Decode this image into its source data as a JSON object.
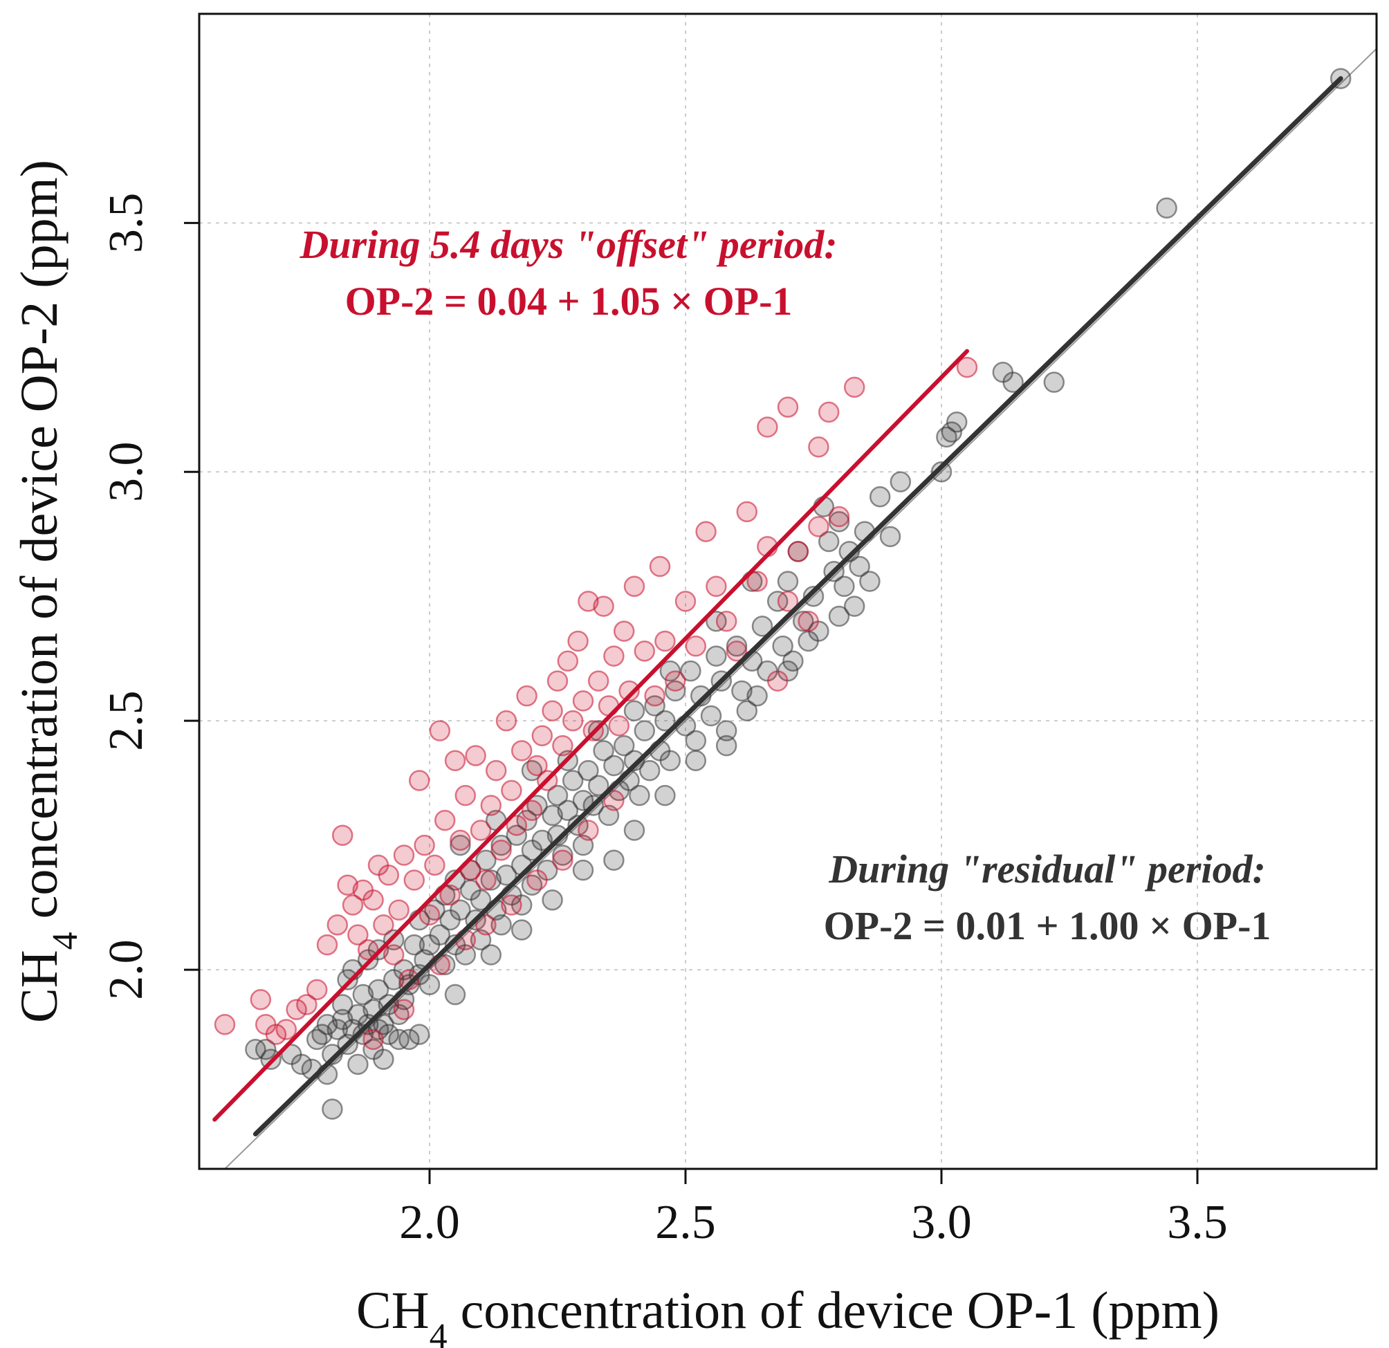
{
  "chart_data": {
    "type": "scatter",
    "xlabel": {
      "pre": "CH",
      "sub": "4",
      "post": " concentration of device OP-1 (ppm)"
    },
    "ylabel": {
      "pre": "CH",
      "sub": "4",
      "post": " concentration of device OP-2 (ppm)"
    },
    "xlim": [
      1.55,
      3.85
    ],
    "ylim": [
      1.6,
      3.92
    ],
    "x_ticks": [
      "2.0",
      "2.5",
      "3.0",
      "3.5"
    ],
    "y_ticks": [
      "2.0",
      "2.5",
      "3.0",
      "3.5"
    ],
    "grid": true,
    "reference_line": {
      "type": "one-to-one",
      "color": "#999999"
    },
    "colors": {
      "offset": "#c8102e",
      "residual": "#333333",
      "grid": "#cccccc"
    },
    "annotations": {
      "offset_title": "During 5.4 days \"offset\" period:",
      "offset_equation": "OP-2 = 0.04 + 1.05 × OP-1",
      "residual_title": "During \"residual\" period:",
      "residual_equation": "OP-2 = 0.01 + 1.00 × OP-1"
    },
    "series": [
      {
        "id": "residual",
        "color": "#333333",
        "fit": {
          "intercept": 0.01,
          "slope": 1.0,
          "x_range": [
            1.66,
            3.78
          ]
        },
        "points": [
          [
            1.66,
            1.84
          ],
          [
            1.68,
            1.84
          ],
          [
            1.69,
            1.82
          ],
          [
            1.73,
            1.83
          ],
          [
            1.75,
            1.81
          ],
          [
            1.77,
            1.8
          ],
          [
            1.78,
            1.86
          ],
          [
            1.79,
            1.87
          ],
          [
            1.8,
            1.89
          ],
          [
            1.8,
            1.79
          ],
          [
            1.81,
            1.83
          ],
          [
            1.81,
            1.72
          ],
          [
            1.82,
            1.88
          ],
          [
            1.83,
            1.9
          ],
          [
            1.83,
            1.93
          ],
          [
            1.84,
            1.85
          ],
          [
            1.84,
            1.98
          ],
          [
            1.85,
            1.88
          ],
          [
            1.85,
            2.0
          ],
          [
            1.86,
            1.91
          ],
          [
            1.86,
            1.81
          ],
          [
            1.87,
            1.87
          ],
          [
            1.87,
            1.95
          ],
          [
            1.88,
            1.89
          ],
          [
            1.88,
            2.02
          ],
          [
            1.89,
            1.84
          ],
          [
            1.89,
            1.92
          ],
          [
            1.9,
            1.88
          ],
          [
            1.9,
            1.96
          ],
          [
            1.9,
            2.04
          ],
          [
            1.91,
            1.89
          ],
          [
            1.91,
            1.82
          ],
          [
            1.92,
            1.93
          ],
          [
            1.92,
            1.87
          ],
          [
            1.93,
            1.98
          ],
          [
            1.93,
            2.06
          ],
          [
            1.94,
            1.91
          ],
          [
            1.94,
            1.86
          ],
          [
            1.95,
            1.94
          ],
          [
            1.95,
            2.0
          ],
          [
            1.96,
            1.97
          ],
          [
            1.96,
            1.86
          ],
          [
            1.97,
            2.05
          ],
          [
            1.98,
            1.99
          ],
          [
            1.98,
            2.1
          ],
          [
            1.99,
            2.02
          ],
          [
            2.0,
            2.05
          ],
          [
            2.0,
            1.97
          ],
          [
            2.01,
            2.12
          ],
          [
            2.02,
            2.07
          ],
          [
            2.03,
            2.01
          ],
          [
            2.03,
            2.15
          ],
          [
            2.04,
            2.1
          ],
          [
            2.05,
            2.05
          ],
          [
            2.05,
            2.18
          ],
          [
            2.06,
            2.12
          ],
          [
            2.07,
            2.03
          ],
          [
            2.08,
            2.16
          ],
          [
            2.08,
            2.2
          ],
          [
            2.09,
            2.1
          ],
          [
            2.1,
            2.14
          ],
          [
            2.1,
            2.06
          ],
          [
            2.11,
            2.22
          ],
          [
            2.12,
            2.18
          ],
          [
            2.13,
            2.12
          ],
          [
            2.14,
            2.25
          ],
          [
            2.14,
            2.09
          ],
          [
            2.15,
            2.19
          ],
          [
            2.16,
            2.15
          ],
          [
            2.17,
            2.27
          ],
          [
            2.18,
            2.21
          ],
          [
            2.18,
            2.13
          ],
          [
            2.19,
            2.3
          ],
          [
            2.2,
            2.24
          ],
          [
            2.2,
            2.17
          ],
          [
            2.21,
            2.33
          ],
          [
            2.22,
            2.26
          ],
          [
            2.23,
            2.2
          ],
          [
            2.24,
            2.31
          ],
          [
            2.25,
            2.27
          ],
          [
            2.25,
            2.35
          ],
          [
            2.26,
            2.23
          ],
          [
            2.27,
            2.32
          ],
          [
            2.28,
            2.38
          ],
          [
            2.29,
            2.29
          ],
          [
            2.3,
            2.34
          ],
          [
            2.3,
            2.25
          ],
          [
            2.31,
            2.4
          ],
          [
            2.32,
            2.33
          ],
          [
            2.33,
            2.37
          ],
          [
            2.34,
            2.44
          ],
          [
            2.35,
            2.31
          ],
          [
            2.36,
            2.41
          ],
          [
            2.37,
            2.36
          ],
          [
            2.38,
            2.45
          ],
          [
            2.39,
            2.38
          ],
          [
            2.4,
            2.42
          ],
          [
            2.41,
            2.35
          ],
          [
            2.42,
            2.48
          ],
          [
            2.43,
            2.4
          ],
          [
            2.44,
            2.53
          ],
          [
            2.45,
            2.44
          ],
          [
            2.46,
            2.5
          ],
          [
            2.47,
            2.42
          ],
          [
            2.48,
            2.56
          ],
          [
            2.5,
            2.49
          ],
          [
            2.51,
            2.6
          ],
          [
            2.52,
            2.46
          ],
          [
            2.53,
            2.55
          ],
          [
            2.55,
            2.51
          ],
          [
            2.56,
            2.63
          ],
          [
            2.57,
            2.58
          ],
          [
            2.58,
            2.45
          ],
          [
            2.6,
            2.65
          ],
          [
            2.61,
            2.56
          ],
          [
            2.63,
            2.62
          ],
          [
            2.64,
            2.55
          ],
          [
            2.65,
            2.69
          ],
          [
            2.66,
            2.6
          ],
          [
            2.68,
            2.74
          ],
          [
            2.69,
            2.65
          ],
          [
            2.7,
            2.78
          ],
          [
            2.71,
            2.62
          ],
          [
            2.72,
            2.84
          ],
          [
            2.73,
            2.7
          ],
          [
            2.75,
            2.75
          ],
          [
            2.76,
            2.68
          ],
          [
            2.77,
            2.93
          ],
          [
            2.78,
            2.86
          ],
          [
            2.79,
            2.8
          ],
          [
            2.8,
            2.9
          ],
          [
            2.81,
            2.77
          ],
          [
            2.82,
            2.84
          ],
          [
            2.83,
            2.73
          ],
          [
            2.84,
            2.81
          ],
          [
            2.85,
            2.88
          ],
          [
            2.86,
            2.78
          ],
          [
            2.88,
            2.95
          ],
          [
            2.9,
            2.87
          ],
          [
            2.92,
            2.98
          ],
          [
            3.0,
            3.0
          ],
          [
            3.01,
            3.07
          ],
          [
            3.02,
            3.08
          ],
          [
            3.03,
            3.1
          ],
          [
            3.12,
            3.2
          ],
          [
            3.14,
            3.18
          ],
          [
            3.22,
            3.18
          ],
          [
            3.44,
            3.53
          ],
          [
            3.78,
            3.79
          ],
          [
            2.4,
            2.28
          ],
          [
            2.46,
            2.35
          ],
          [
            2.36,
            2.22
          ],
          [
            2.3,
            2.2
          ],
          [
            2.24,
            2.14
          ],
          [
            2.18,
            2.08
          ],
          [
            2.12,
            2.03
          ],
          [
            2.05,
            1.95
          ],
          [
            1.98,
            1.87
          ],
          [
            2.52,
            2.42
          ],
          [
            2.58,
            2.48
          ],
          [
            2.62,
            2.52
          ],
          [
            2.7,
            2.6
          ],
          [
            2.74,
            2.66
          ],
          [
            2.8,
            2.71
          ],
          [
            2.06,
            2.25
          ],
          [
            2.13,
            2.3
          ],
          [
            2.2,
            2.4
          ],
          [
            2.27,
            2.42
          ],
          [
            2.33,
            2.48
          ],
          [
            2.4,
            2.52
          ],
          [
            2.47,
            2.6
          ],
          [
            2.56,
            2.7
          ],
          [
            2.63,
            2.78
          ]
        ]
      },
      {
        "id": "offset",
        "color": "#c8102e",
        "fit": {
          "intercept": 0.04,
          "slope": 1.05,
          "x_range": [
            1.58,
            3.05
          ]
        },
        "points": [
          [
            1.6,
            1.89
          ],
          [
            1.67,
            1.94
          ],
          [
            1.68,
            1.89
          ],
          [
            1.7,
            1.87
          ],
          [
            1.72,
            1.88
          ],
          [
            1.74,
            1.92
          ],
          [
            1.76,
            1.93
          ],
          [
            1.78,
            1.96
          ],
          [
            1.8,
            2.05
          ],
          [
            1.82,
            2.09
          ],
          [
            1.83,
            2.27
          ],
          [
            1.84,
            2.17
          ],
          [
            1.85,
            2.13
          ],
          [
            1.86,
            2.07
          ],
          [
            1.87,
            2.16
          ],
          [
            1.88,
            2.04
          ],
          [
            1.89,
            2.14
          ],
          [
            1.9,
            2.21
          ],
          [
            1.91,
            2.09
          ],
          [
            1.92,
            2.19
          ],
          [
            1.93,
            2.03
          ],
          [
            1.94,
            2.12
          ],
          [
            1.95,
            2.23
          ],
          [
            1.96,
            1.98
          ],
          [
            1.97,
            2.18
          ],
          [
            1.98,
            2.38
          ],
          [
            1.99,
            2.25
          ],
          [
            2.0,
            2.11
          ],
          [
            2.01,
            2.21
          ],
          [
            2.02,
            2.48
          ],
          [
            2.03,
            2.3
          ],
          [
            2.04,
            2.15
          ],
          [
            2.05,
            2.42
          ],
          [
            2.06,
            2.26
          ],
          [
            2.07,
            2.35
          ],
          [
            2.08,
            2.2
          ],
          [
            2.09,
            2.43
          ],
          [
            2.1,
            2.28
          ],
          [
            2.11,
            2.18
          ],
          [
            2.12,
            2.33
          ],
          [
            2.13,
            2.4
          ],
          [
            2.14,
            2.24
          ],
          [
            2.15,
            2.5
          ],
          [
            2.16,
            2.36
          ],
          [
            2.17,
            2.29
          ],
          [
            2.18,
            2.44
          ],
          [
            2.19,
            2.55
          ],
          [
            2.2,
            2.32
          ],
          [
            2.21,
            2.41
          ],
          [
            2.22,
            2.47
          ],
          [
            2.23,
            2.38
          ],
          [
            2.24,
            2.52
          ],
          [
            2.25,
            2.58
          ],
          [
            2.26,
            2.45
          ],
          [
            2.27,
            2.62
          ],
          [
            2.28,
            2.5
          ],
          [
            2.29,
            2.66
          ],
          [
            2.3,
            2.54
          ],
          [
            2.31,
            2.74
          ],
          [
            2.32,
            2.48
          ],
          [
            2.33,
            2.58
          ],
          [
            2.34,
            2.73
          ],
          [
            2.35,
            2.53
          ],
          [
            2.36,
            2.63
          ],
          [
            2.37,
            2.49
          ],
          [
            2.38,
            2.68
          ],
          [
            2.39,
            2.56
          ],
          [
            2.4,
            2.77
          ],
          [
            2.42,
            2.64
          ],
          [
            2.44,
            2.55
          ],
          [
            2.45,
            2.81
          ],
          [
            2.46,
            2.66
          ],
          [
            2.48,
            2.58
          ],
          [
            2.5,
            2.74
          ],
          [
            2.52,
            2.65
          ],
          [
            2.54,
            2.88
          ],
          [
            2.56,
            2.77
          ],
          [
            2.58,
            2.7
          ],
          [
            2.6,
            2.64
          ],
          [
            2.62,
            2.92
          ],
          [
            2.64,
            2.78
          ],
          [
            2.66,
            2.85
          ],
          [
            2.66,
            3.09
          ],
          [
            2.68,
            2.58
          ],
          [
            2.7,
            2.74
          ],
          [
            2.7,
            3.13
          ],
          [
            2.72,
            2.84
          ],
          [
            2.74,
            2.7
          ],
          [
            2.76,
            3.05
          ],
          [
            2.76,
            2.89
          ],
          [
            2.78,
            3.12
          ],
          [
            2.8,
            2.91
          ],
          [
            2.83,
            3.17
          ],
          [
            3.05,
            3.21
          ],
          [
            2.07,
            2.06
          ],
          [
            2.11,
            2.09
          ],
          [
            2.16,
            2.13
          ],
          [
            2.21,
            2.18
          ],
          [
            2.26,
            2.22
          ],
          [
            2.02,
            2.01
          ],
          [
            1.95,
            1.92
          ],
          [
            1.89,
            1.86
          ],
          [
            2.31,
            2.28
          ],
          [
            2.36,
            2.34
          ]
        ]
      }
    ]
  }
}
